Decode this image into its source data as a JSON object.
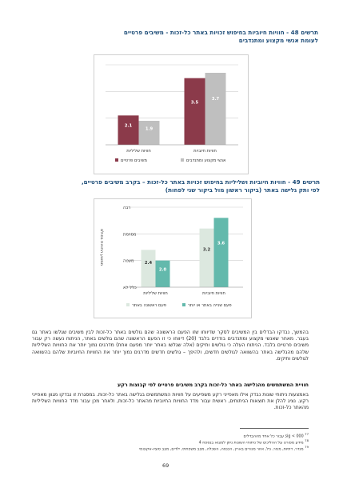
{
  "figure48": {
    "title_line1": "תרשים 48 - חוויות חיוביות בחיפוש זכויות באתר כל-זכות - משיבים פרטיים",
    "title_line2": "לעומת אנשי מקצוע ומתנדבים",
    "legend": [
      "משיבים פרטיים",
      "אנשי מקצוע ומתנדבים"
    ],
    "colors": [
      "#8b3a4a",
      "#bfbfbf"
    ]
  },
  "figure49": {
    "title_line1": "תרשים 49 - חוויות חיוביות ושליליות בחיפוש זכויות באתר כל-זכות – בקרב משיבים פרטיים,",
    "title_line2": "לפי ותק גלישה באתר (ביקור ראשון מול ביקור שני לפחות)",
    "legend": [
      "פעם ראשונה באתר",
      "פעם שנייה באתר או יותר"
    ],
    "colors": [
      "#dce8df",
      "#63b9ac"
    ]
  },
  "chart_data": [
    {
      "type": "bar",
      "categories": [
        "חוויות חיוביות",
        "חוויות שליליות"
      ],
      "series": [
        {
          "name": "משיבים פרטיים",
          "values": [
            3.5,
            2.1
          ]
        },
        {
          "name": "אנשי מקצוע ומתנדבים",
          "values": [
            3.7,
            1.9
          ]
        }
      ],
      "ylim": [
        1,
        4
      ],
      "grid": true,
      "legend": "bottom"
    },
    {
      "type": "bar",
      "categories": [
        "חוויות חיוביות",
        "חוויות שליליות"
      ],
      "series": [
        {
          "name": "פעם ראשונה באתר",
          "values": [
            3.2,
            2.4
          ]
        },
        {
          "name": "פעם שנייה באתר או יותר",
          "values": [
            3.6,
            2.0
          ]
        }
      ],
      "ylim": [
        1,
        4
      ],
      "yticks": [
        "כלל לא",
        "מעטה",
        "מסוימת",
        "רבה"
      ],
      "ylabel": "ממוצע החוויות בסולם",
      "grid": true,
      "legend": "bottom"
    }
  ],
  "body": {
    "paragraph1": "בהמשך, נבדקו הבדלים בין המשיבים לסקר שדיווחו שזו הפעם הראשונה שהם גולשים באתר כל-זכות לבין משיבים שגלשו באתר גם בעבר. מאחר שאנשי מקצוע ומתנדבים בודדים בלבד (20) דיווחו כי זו הפעם הראשונה שהם גולשים באתר, הניתוח נעשה רק עבור משיבים פרטיים בלבד. הניתוח העלה כי גולשים ותיקים (אלה שגלשו באתר יותר מפעם אחת) מדרגים נמוך יותר את החוויות השליליות שלהם מהגלישה באתר בהשוואה לגולשים חדשים, ולהיפך – גולשים חדשים מדרגים נמוך יותר את החוויות החיוביות שלהם בהשוואה לגולשים ותיקים.",
    "subheading": "חוויית המשתמשים מהגלישה באתר כל-זכות בקרב משיבים פרטיים לפי קבוצות רקע",
    "paragraph2": "באמצעות ניתוחי שונות נבדק אילו מאפייני רקע משפיעים על חוויות המשתמשים בגלישה באתר כל-זכות. במסגרת זו נבדקו מגוון מאפייני רקע. נציג להלן את תוצאות הניתוחים, ראשית עבור מדד החוויות החיוביות מהאתר כל-זכות, ולאחר מכן עבור מדד החוויות השליליות מהאתר כל-זכות.",
    "footnotes": [
      "000 > sig עבור כל אחד מההבדלים",
      "מידע מפורט על ההליכים של ניתוחי השונות ניתן למצוא בנספח 4",
      "מגדר, דתיות, מגזר, גיל, אזור מגורים בארץ, הכנסה, השכלה, מצב משפחתי, ילדים, מצב סוציו-אקונומי"
    ],
    "footnote_marks": [
      "77",
      "78",
      "79"
    ],
    "page_number": "69"
  }
}
